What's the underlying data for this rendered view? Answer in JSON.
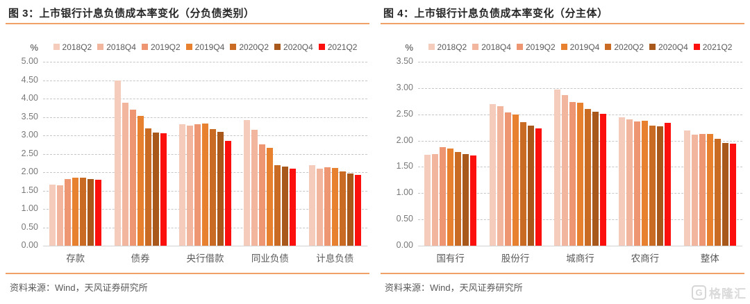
{
  "colors": {
    "accent_line": "#f0a266",
    "title_text": "#262626",
    "watermark_gray": "#d6d6d6"
  },
  "watermark": {
    "logo_text": "格隆汇"
  },
  "chart_data": [
    {
      "type": "bar",
      "figure_label": "图 3：",
      "title": "上市银行计息负债成本率变化（分负债类别）",
      "unit_label": "%",
      "legend_position": "top",
      "grid": "horizontal-dashed",
      "ylim": [
        0,
        5.0
      ],
      "ytick_step": 0.5,
      "ytick_labels": [
        "5.00",
        "4.50",
        "4.00",
        "3.50",
        "3.00",
        "2.50",
        "2.00",
        "1.50",
        "1.00",
        "0.50",
        "0.00"
      ],
      "categories": [
        "存款",
        "债券",
        "央行借款",
        "同业负债",
        "计息负债"
      ],
      "series": [
        {
          "name": "2018Q2",
          "color": "#f5ccbc",
          "values": [
            1.66,
            4.5,
            3.3,
            3.42,
            2.19
          ]
        },
        {
          "name": "2018Q4",
          "color": "#f2b59e",
          "values": [
            1.65,
            3.89,
            3.27,
            3.15,
            2.1
          ]
        },
        {
          "name": "2019Q2",
          "color": "#ee9671",
          "values": [
            1.82,
            3.7,
            3.31,
            2.76,
            2.13
          ]
        },
        {
          "name": "2019Q4",
          "color": "#e8812f",
          "values": [
            1.84,
            3.52,
            3.33,
            2.66,
            2.11
          ]
        },
        {
          "name": "2020Q2",
          "color": "#c96b22",
          "values": [
            1.85,
            3.19,
            3.17,
            2.19,
            2.02
          ]
        },
        {
          "name": "2020Q4",
          "color": "#a8581b",
          "values": [
            1.82,
            3.08,
            3.1,
            2.15,
            1.96
          ]
        },
        {
          "name": "2021Q2",
          "color": "#fb100d",
          "values": [
            1.79,
            3.05,
            2.85,
            2.09,
            1.93
          ]
        }
      ],
      "source_note": "资料来源：Wind，天风证券研究所"
    },
    {
      "type": "bar",
      "figure_label": "图 4：",
      "title": "上市银行计息负债成本率变化（分主体）",
      "unit_label": "%",
      "legend_position": "top",
      "grid": "horizontal-dashed",
      "ylim": [
        0,
        3.5
      ],
      "ytick_step": 0.5,
      "ytick_labels": [
        "3.50",
        "3.00",
        "2.50",
        "2.00",
        "1.50",
        "1.00",
        "0.50",
        "0.00"
      ],
      "categories": [
        "国有行",
        "股份行",
        "城商行",
        "农商行",
        "整体"
      ],
      "series": [
        {
          "name": "2018Q2",
          "color": "#f5ccbc",
          "values": [
            1.73,
            2.7,
            2.97,
            2.44,
            2.19
          ]
        },
        {
          "name": "2018Q4",
          "color": "#f2b59e",
          "values": [
            1.75,
            2.65,
            2.86,
            2.41,
            2.11
          ]
        },
        {
          "name": "2019Q2",
          "color": "#ee9671",
          "values": [
            1.87,
            2.53,
            2.73,
            2.37,
            2.13
          ]
        },
        {
          "name": "2019Q4",
          "color": "#e8812f",
          "values": [
            1.85,
            2.5,
            2.72,
            2.38,
            2.12
          ]
        },
        {
          "name": "2020Q2",
          "color": "#c96b22",
          "values": [
            1.78,
            2.35,
            2.6,
            2.29,
            2.03
          ]
        },
        {
          "name": "2020Q4",
          "color": "#a8581b",
          "values": [
            1.74,
            2.28,
            2.55,
            2.27,
            1.95
          ]
        },
        {
          "name": "2021Q2",
          "color": "#fb100d",
          "values": [
            1.72,
            2.23,
            2.51,
            2.34,
            1.94
          ]
        }
      ],
      "source_note": "资料来源：Wind，天风证券研究所"
    }
  ]
}
